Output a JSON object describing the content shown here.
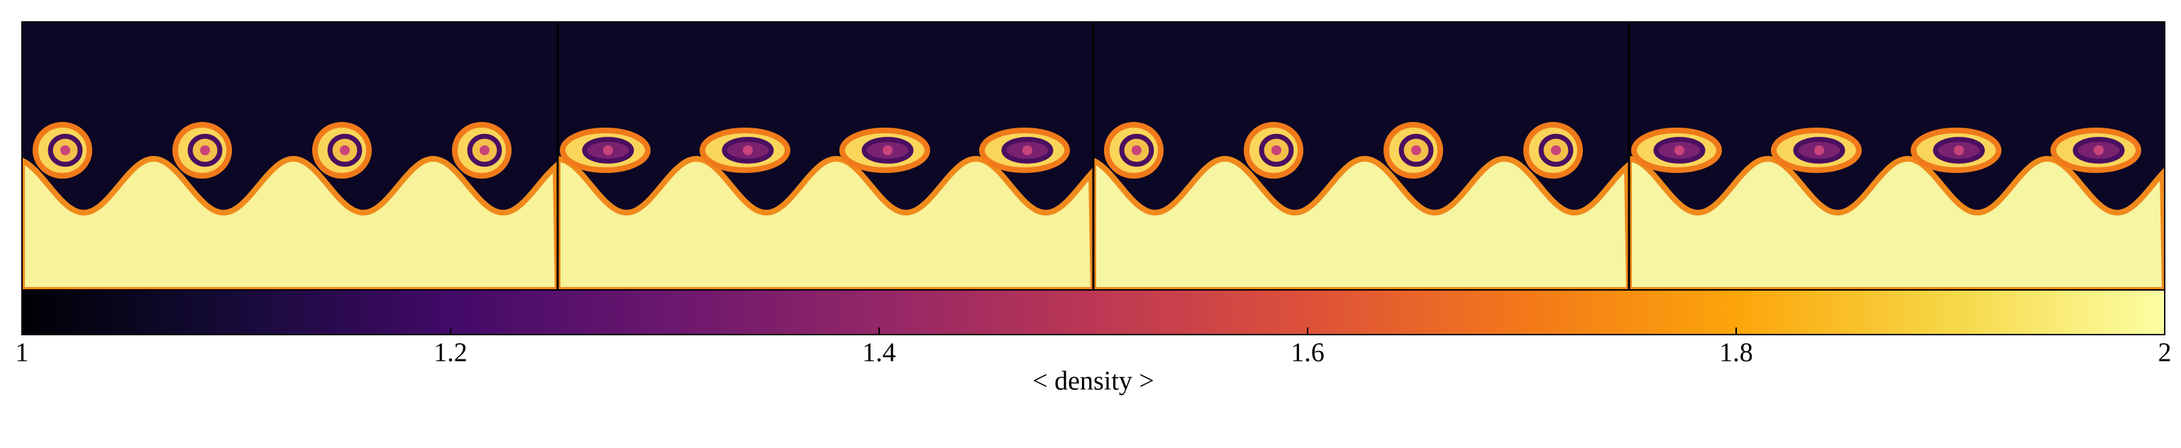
{
  "chart_data": {
    "type": "colorbar",
    "label": "< density >",
    "clim": [
      1,
      2
    ],
    "ticks": [
      1,
      1.2,
      1.4,
      1.6,
      1.8,
      2
    ]
  }
}
